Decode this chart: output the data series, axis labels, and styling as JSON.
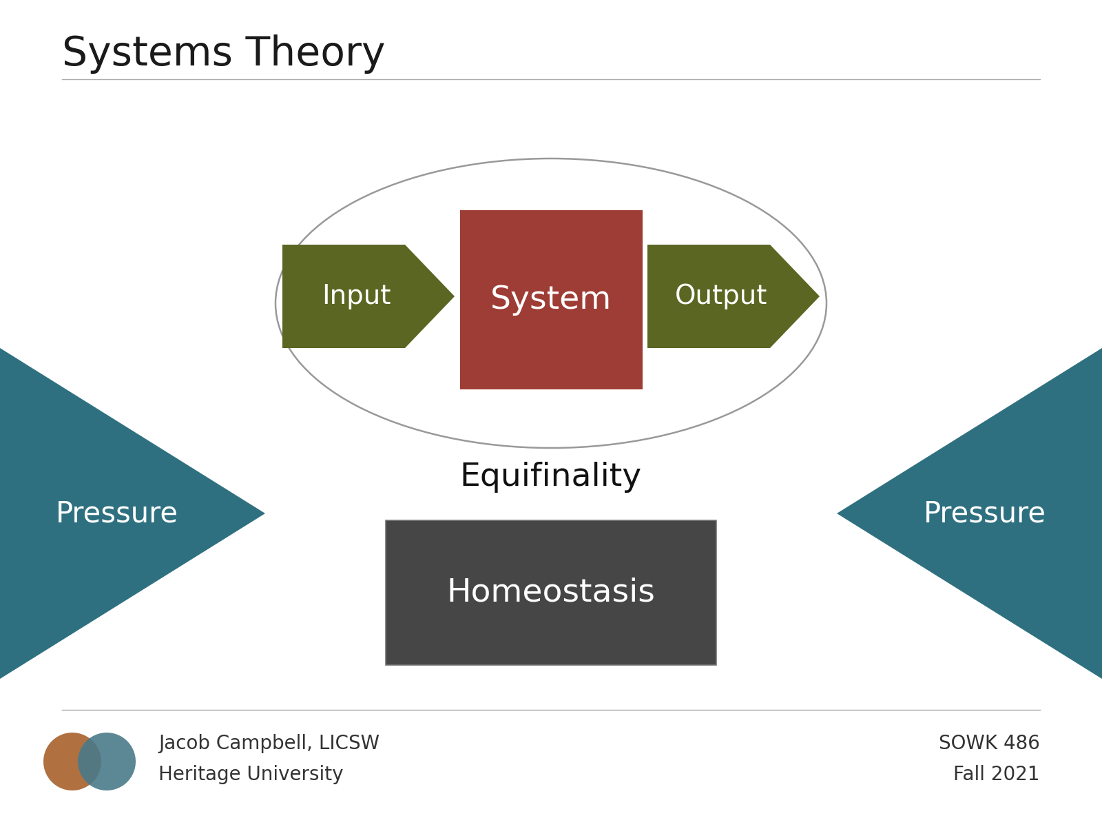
{
  "title": "Systems Theory",
  "title_fontsize": 42,
  "title_color": "#1a1a1a",
  "background_color": "#ffffff",
  "olive_color": "#5a6621",
  "red_color": "#9e3d35",
  "teal_color": "#2e7080",
  "dark_gray_color": "#464646",
  "white_text": "#ffffff",
  "black_text": "#111111",
  "ellipse_edge_color": "#999999",
  "input_label": "Input",
  "system_label": "System",
  "output_label": "Output",
  "equifinality_label": "Equifinality",
  "pressure_left_label": "Pressure",
  "pressure_right_label": "Pressure",
  "homeostasis_label": "Homeostasis",
  "footer_left1": "Jacob Campbell, LICSW",
  "footer_left2": "Heritage University",
  "footer_right1": "SOWK 486",
  "footer_right2": "Fall 2021",
  "footer_fontsize": 20,
  "label_fontsize": 28,
  "system_fontsize": 34,
  "equifinality_fontsize": 34,
  "homeostasis_fontsize": 34,
  "pressure_fontsize": 30,
  "circle1_color": "#b07040",
  "circle2_color": "#4a7a8a"
}
